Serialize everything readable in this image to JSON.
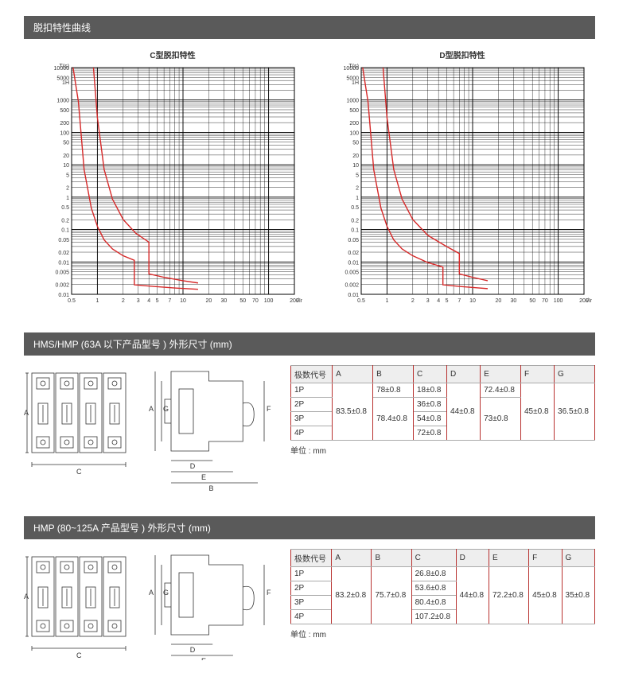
{
  "section1": {
    "title": "脱扣特性曲线",
    "chart_c": {
      "title": "C型脱扣特性",
      "y_label": "T(s)",
      "x_label": "I/In",
      "y_ticks": [
        "10000",
        "5000",
        "1000",
        "1H",
        "500",
        "200",
        "100",
        "50",
        "20",
        "10",
        "5",
        "2",
        "1",
        "0.5",
        "0.2",
        "0.1",
        "0.05",
        "0.02",
        "0.01",
        "0.005",
        "0.002",
        "0.01"
      ],
      "x_ticks": [
        "0.5",
        "1",
        "2",
        "3",
        "4",
        "5",
        "7",
        "10",
        "20",
        "30",
        "50",
        "70",
        "100",
        "200"
      ],
      "curve_color": "#d62828",
      "grid_color": "#000000",
      "curve1": [
        [
          0.52,
          1.0
        ],
        [
          0.6,
          0.85
        ],
        [
          0.7,
          0.55
        ],
        [
          0.85,
          0.38
        ],
        [
          1.0,
          0.3
        ],
        [
          1.2,
          0.24
        ],
        [
          1.5,
          0.2
        ],
        [
          2.0,
          0.17
        ],
        [
          2.7,
          0.15
        ],
        [
          2.7,
          0.042
        ],
        [
          4.5,
          0.035
        ],
        [
          8,
          0.028
        ],
        [
          15,
          0.022
        ]
      ],
      "curve2": [
        [
          0.9,
          1.0
        ],
        [
          1.0,
          0.78
        ],
        [
          1.2,
          0.55
        ],
        [
          1.5,
          0.42
        ],
        [
          2.0,
          0.33
        ],
        [
          2.8,
          0.27
        ],
        [
          4.0,
          0.23
        ],
        [
          4.0,
          0.09
        ],
        [
          6,
          0.075
        ],
        [
          10,
          0.06
        ],
        [
          15,
          0.05
        ]
      ]
    },
    "chart_d": {
      "title": "D型脱扣特性",
      "y_label": "T(s)",
      "x_label": "I/In",
      "y_ticks": [
        "10000",
        "5000",
        "1000",
        "1H",
        "500",
        "200",
        "100",
        "50",
        "20",
        "10",
        "5",
        "2",
        "1",
        "0.5",
        "0.2",
        "0.1",
        "0.05",
        "0.02",
        "0.01",
        "0.005",
        "0.002",
        "0.01"
      ],
      "x_ticks": [
        "0.5",
        "1",
        "2",
        "3",
        "4",
        "5",
        "7",
        "10",
        "20",
        "30",
        "50",
        "70",
        "100",
        "200"
      ],
      "curve_color": "#d62828",
      "grid_color": "#000000",
      "curve1": [
        [
          0.52,
          1.0
        ],
        [
          0.6,
          0.85
        ],
        [
          0.7,
          0.55
        ],
        [
          0.85,
          0.38
        ],
        [
          1.0,
          0.3
        ],
        [
          1.2,
          0.24
        ],
        [
          1.5,
          0.2
        ],
        [
          2.0,
          0.17
        ],
        [
          3.0,
          0.14
        ],
        [
          4.5,
          0.12
        ],
        [
          4.5,
          0.042
        ],
        [
          7,
          0.035
        ],
        [
          12,
          0.028
        ],
        [
          15,
          0.025
        ]
      ],
      "curve2": [
        [
          0.9,
          1.0
        ],
        [
          1.0,
          0.78
        ],
        [
          1.2,
          0.55
        ],
        [
          1.5,
          0.42
        ],
        [
          2.0,
          0.33
        ],
        [
          3.0,
          0.26
        ],
        [
          5.0,
          0.21
        ],
        [
          7.0,
          0.18
        ],
        [
          7.0,
          0.09
        ],
        [
          10,
          0.075
        ],
        [
          15,
          0.06
        ]
      ]
    }
  },
  "section2": {
    "title": "HMS/HMP (63A 以下产品型号 ) 外形尺寸 (mm)",
    "unit": "单位 : mm",
    "headers": [
      "极数代号",
      "A",
      "B",
      "C",
      "D",
      "E",
      "F",
      "G"
    ],
    "rows": [
      [
        "1P",
        "",
        "78±0.8",
        "18±0.8",
        "",
        "72.4±0.8",
        "",
        ""
      ],
      [
        "2P",
        "",
        "",
        "36±0.8",
        "",
        "",
        "",
        ""
      ],
      [
        "3P",
        "83.5±0.8",
        "78.4±0.8",
        "54±0.8",
        "44±0.8",
        "73±0.8",
        "45±0.8",
        "36.5±0.8"
      ],
      [
        "4P",
        "",
        "",
        "72±0.8",
        "",
        "",
        "",
        ""
      ]
    ],
    "merges": {
      "A": {
        "start": 1,
        "span": 4,
        "value": "83.5±0.8"
      },
      "B0": {
        "start": 0,
        "span": 1,
        "value": "78±0.8"
      },
      "B1": {
        "start": 2,
        "span": 2,
        "value": "78.4±0.8"
      },
      "D": {
        "start": 1,
        "span": 4,
        "value": "44±0.8"
      },
      "E0": {
        "start": 0,
        "span": 1,
        "value": "72.4±0.8"
      },
      "E1": {
        "start": 2,
        "span": 2,
        "value": "73±0.8"
      },
      "F": {
        "start": 1,
        "span": 4,
        "value": "45±0.8"
      },
      "G": {
        "start": 1,
        "span": 4,
        "value": "36.5±0.8"
      }
    }
  },
  "section3": {
    "title": "HMP (80~125A 产品型号 ) 外形尺寸 (mm)",
    "unit": "单位 : mm",
    "headers": [
      "极数代号",
      "A",
      "B",
      "C",
      "D",
      "E",
      "F",
      "G"
    ],
    "rows": [
      [
        "1P",
        "",
        "",
        "26.8±0.8",
        "",
        "",
        "",
        ""
      ],
      [
        "2P",
        "",
        "",
        "53.6±0.8",
        "",
        "",
        "",
        ""
      ],
      [
        "3P",
        "83.2±0.8",
        "75.7±0.8",
        "80.4±0.8",
        "44±0.8",
        "72.2±0.8",
        "45±0.8",
        "35±0.8"
      ],
      [
        "4P",
        "",
        "",
        "107.2±0.8",
        "",
        "",
        "",
        ""
      ]
    ]
  },
  "dim_labels": {
    "front": [
      "A",
      "C"
    ],
    "side": [
      "A",
      "G",
      "D",
      "E",
      "B",
      "F"
    ]
  }
}
